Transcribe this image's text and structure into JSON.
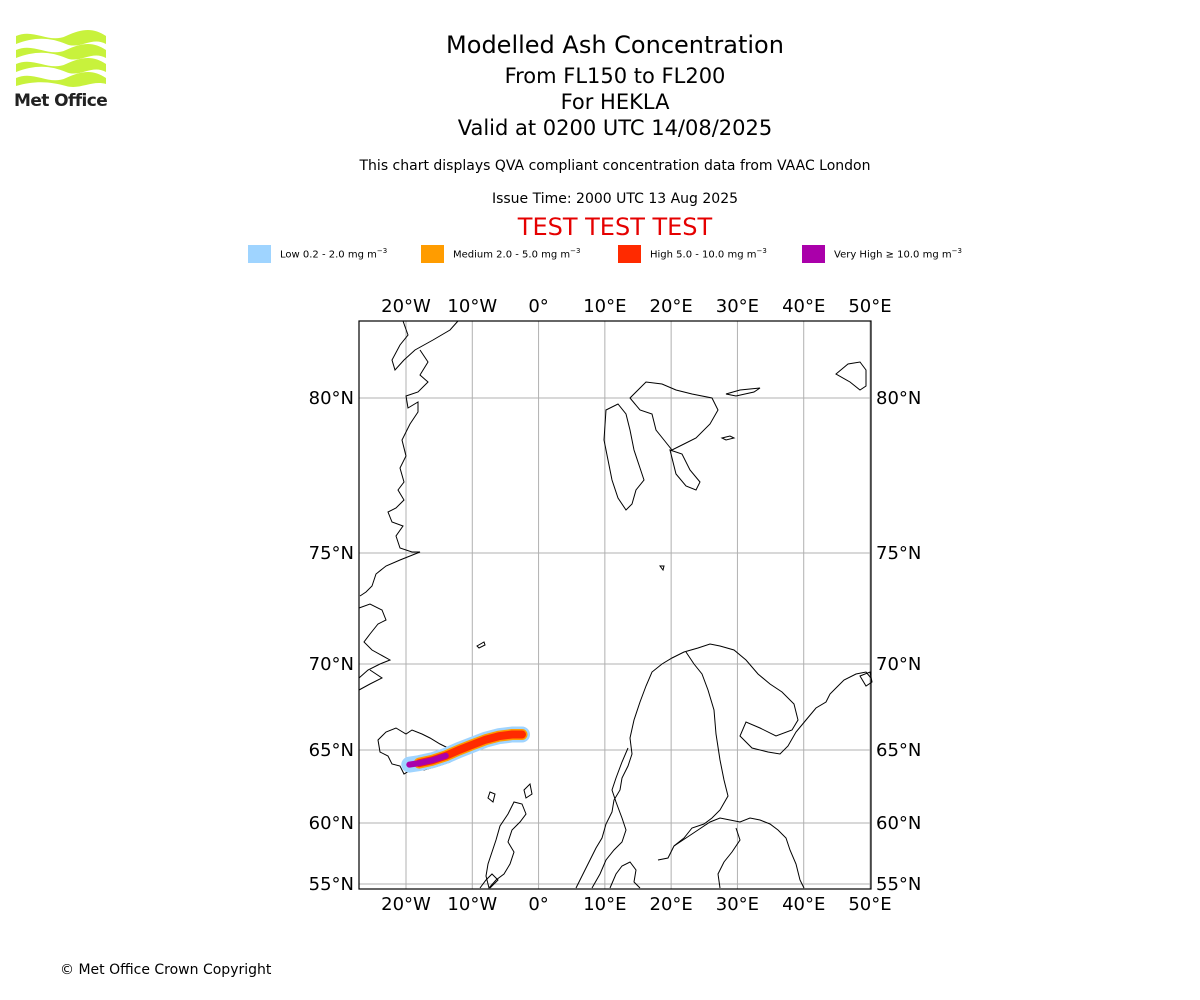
{
  "header": {
    "title": "Modelled Ash Concentration",
    "level_range": "From FL150 to FL200",
    "volcano": "For HEKLA",
    "valid_time": "Valid at 0200 UTC 14/08/2025",
    "description": "This chart displays QVA compliant concentration data from VAAC London",
    "issue_time": "Issue Time: 2000 UTC 13 Aug 2025",
    "test_banner": "TEST TEST TEST"
  },
  "logo": {
    "text": "Met Office",
    "color": "#c8f23c"
  },
  "legend": [
    {
      "label": "Low 0.2 - 2.0 mg m",
      "color": "#9fd4ff"
    },
    {
      "label": "Medium 2.0 - 5.0 mg m",
      "color": "#ff9c00"
    },
    {
      "label": "High 5.0 - 10.0 mg m",
      "color": "#ff2a00"
    },
    {
      "label": "Very High ≥ 10.0 mg m",
      "color": "#aa00aa"
    }
  ],
  "legend_unit_exponent": "−3",
  "map": {
    "lon_ticks": [
      "20°W",
      "10°W",
      "0°",
      "10°E",
      "20°E",
      "30°E",
      "40°E",
      "50°E"
    ],
    "lat_ticks": [
      "80°N",
      "75°N",
      "70°N",
      "65°N",
      "60°N",
      "55°N"
    ],
    "lon_values": [
      -20,
      -10,
      0,
      10,
      20,
      30,
      40,
      50
    ],
    "lat_values": [
      80,
      75,
      70,
      65,
      60,
      55
    ],
    "lon_range": [
      -27,
      50
    ],
    "lat_range": [
      55,
      82
    ],
    "gridlines": true,
    "ash_plume_lon": [
      -19.5,
      -18,
      -16,
      -14,
      -12,
      -10,
      -8,
      -6,
      -4,
      -2.5
    ],
    "ash_plume_lat": [
      64.0,
      64.1,
      64.3,
      64.6,
      65.0,
      65.3,
      65.6,
      65.8,
      65.9,
      65.9
    ]
  },
  "footer": {
    "copyright": "© Met Office Crown Copyright"
  }
}
